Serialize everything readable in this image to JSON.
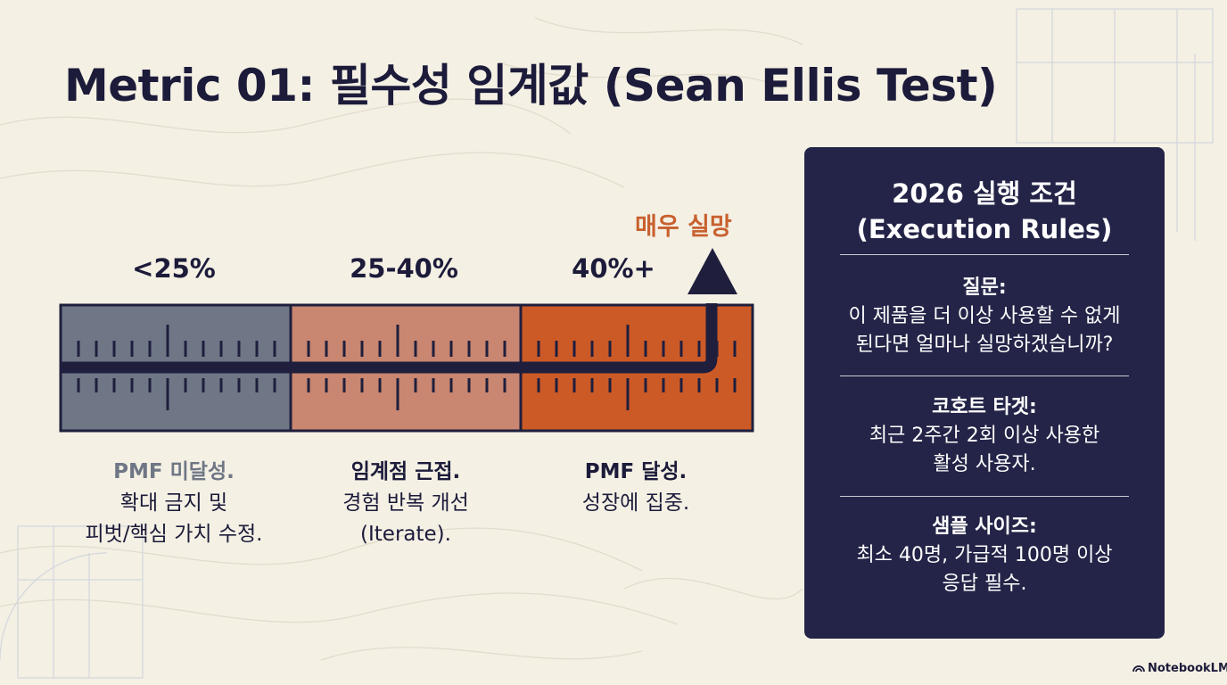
{
  "title": "Metric 01: 필수성 임계값 (Sean Ellis Test)",
  "zones": [
    {
      "range": "<25%",
      "head": "PMF 미달성.",
      "lines": [
        "확대 금지 및",
        "피벗/핵심 가치 수정."
      ],
      "color": "#6f7786"
    },
    {
      "range": "25-40%",
      "head": "임계점 근접.",
      "lines": [
        "경험 반복 개선",
        "(Iterate)."
      ],
      "color": "#c98670"
    },
    {
      "range": "40%+",
      "head": "PMF 달성.",
      "lines": [
        "성장에 집중."
      ],
      "color": "#cc5a26"
    }
  ],
  "arrow_label": "매우 실망",
  "panel": {
    "title_line1": "2026 실행 조건",
    "title_line2": "(Execution Rules)",
    "rules": [
      {
        "label": "질문:",
        "lines": [
          "이 제품을 더 이상 사용할 수 없게",
          "된다면 얼마나 실망하겠습니까?"
        ]
      },
      {
        "label": "코호트 타겟:",
        "lines": [
          "최근 2주간 2회 이상 사용한",
          "활성 사용자."
        ]
      },
      {
        "label": "샘플 사이즈:",
        "lines": [
          "최소 40명, 가급적 100명 이상",
          "응답 필수."
        ]
      }
    ],
    "bg_color": "#232447"
  },
  "footer": "NotebookLM"
}
